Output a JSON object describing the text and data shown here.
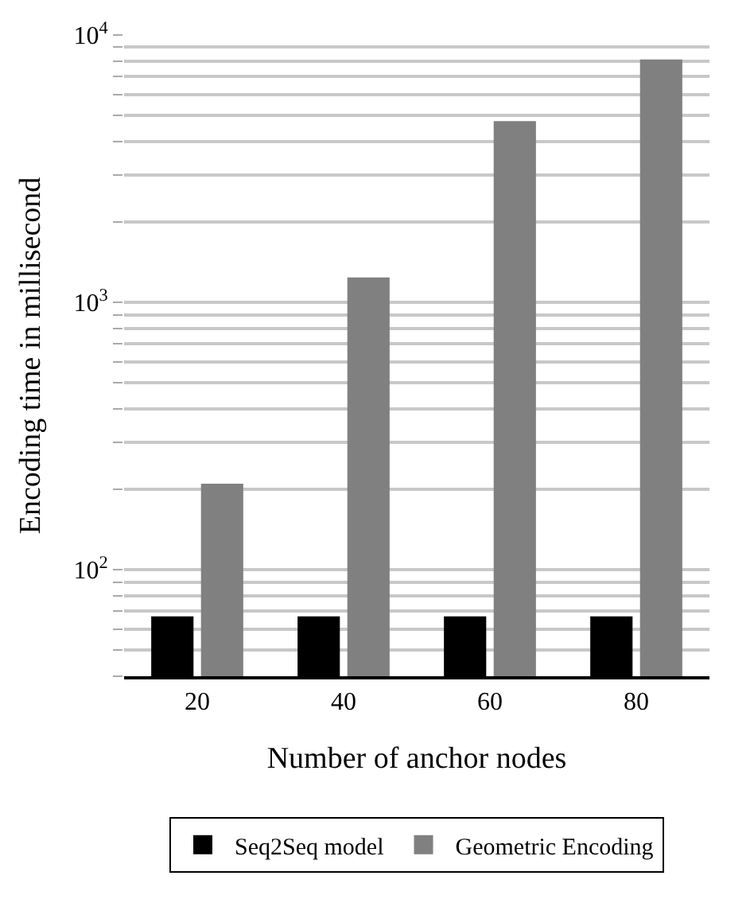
{
  "chart_data": {
    "type": "bar",
    "xlabel": "Number of anchor nodes",
    "ylabel": "Encoding time in millisecond",
    "categories": [
      "20",
      "40",
      "60",
      "80"
    ],
    "series": [
      {
        "name": "Seq2Seq model",
        "color": "#000000",
        "values": [
          67,
          67,
          67,
          67
        ]
      },
      {
        "name": "Geometric Encoding",
        "color": "#808080",
        "values": [
          210,
          1240,
          4760,
          8100
        ]
      }
    ],
    "log": true,
    "ylim": [
      40,
      10000
    ],
    "yticks": [
      {
        "value": 100,
        "label": "10$^{2}$"
      },
      {
        "value": 1000,
        "label": "10$^{3}$"
      },
      {
        "value": 10000,
        "label": "10$^{4}$"
      }
    ],
    "grid": "y",
    "legend": "bottom"
  }
}
